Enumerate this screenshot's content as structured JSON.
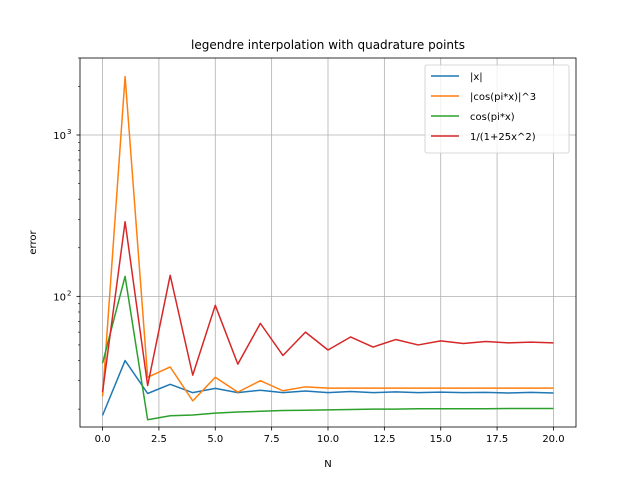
{
  "chart_data": {
    "type": "line",
    "title": "legendre interpolation with quadrature points",
    "xlabel": "N",
    "ylabel": "error",
    "yscale": "log",
    "xlim": [
      -1.0,
      21.0
    ],
    "ylim": [
      15.5,
      3000
    ],
    "x": [
      0,
      1,
      2,
      3,
      4,
      5,
      6,
      7,
      8,
      9,
      10,
      11,
      12,
      13,
      14,
      15,
      16,
      17,
      18,
      19,
      20
    ],
    "x_ticks": [
      0.0,
      2.5,
      5.0,
      7.5,
      10.0,
      12.5,
      15.0,
      17.5,
      20.0
    ],
    "x_tick_labels": [
      "0.0",
      "2.5",
      "5.0",
      "7.5",
      "10.0",
      "12.5",
      "15.0",
      "17.5",
      "20.0"
    ],
    "y_major_ticks": [
      100,
      1000
    ],
    "y_tick_labels": [
      "10",
      "10"
    ],
    "y_tick_exponents": [
      "2",
      "3"
    ],
    "y_minor_ticks": [
      20,
      30,
      40,
      50,
      60,
      70,
      80,
      90,
      200,
      300,
      400,
      500,
      600,
      700,
      800,
      900,
      2000,
      3000
    ],
    "grid": true,
    "legend_position": "upper right",
    "series": [
      {
        "name": "|x|",
        "color": "#1f77b4",
        "values": [
          18.3,
          40.0,
          25.0,
          28.5,
          25.3,
          26.9,
          25.3,
          26.2,
          25.3,
          25.9,
          25.3,
          25.7,
          25.3,
          25.6,
          25.3,
          25.5,
          25.3,
          25.4,
          25.2,
          25.4,
          25.2
        ]
      },
      {
        "name": "|cos(pi*x)|^3",
        "color": "#ff7f0e",
        "values": [
          24.0,
          2300,
          31.5,
          36.5,
          22.5,
          31.5,
          25.5,
          30.0,
          26.0,
          27.5,
          27.0,
          27.0,
          27.0,
          27.0,
          27.0,
          27.0,
          27.0,
          27.0,
          27.0,
          27.0,
          27.0
        ]
      },
      {
        "name": "cos(pi*x)",
        "color": "#2ca02c",
        "values": [
          38.5,
          133,
          17.2,
          18.2,
          18.4,
          18.9,
          19.2,
          19.4,
          19.6,
          19.7,
          19.8,
          19.9,
          20.0,
          20.0,
          20.1,
          20.1,
          20.1,
          20.1,
          20.2,
          20.2,
          20.2
        ]
      },
      {
        "name": "1/(1+25x^2)",
        "color": "#d62728",
        "values": [
          25.5,
          290,
          28.0,
          135,
          32.5,
          88.0,
          38.0,
          68.0,
          43.0,
          60.0,
          46.5,
          56.0,
          48.5,
          54.0,
          50.0,
          53.0,
          51.0,
          52.5,
          51.5,
          52.0,
          51.5
        ]
      }
    ]
  }
}
